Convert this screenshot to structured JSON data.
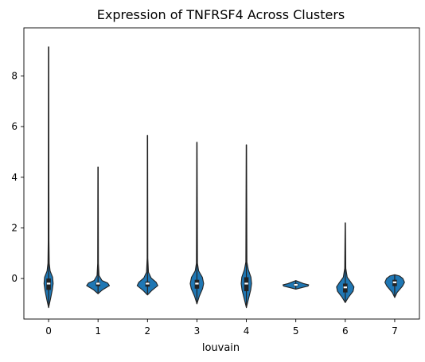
{
  "chart_data": {
    "type": "violin",
    "title": "Expression of TNFRSF4 Across Clusters",
    "xlabel": "louvain",
    "ylabel": "",
    "categories": [
      "0",
      "1",
      "2",
      "3",
      "4",
      "5",
      "6",
      "7"
    ],
    "y_ticks": [
      0,
      2,
      4,
      6,
      8
    ],
    "ylim": [
      -1.6,
      9.9
    ],
    "violin_color": "#1f77b4",
    "line_color": "#222222",
    "median_color": "#ffffff",
    "grid": false,
    "legend": "none",
    "series": [
      {
        "category": "0",
        "min": -1.15,
        "q1": -0.45,
        "median": -0.2,
        "q3": 0.0,
        "max": 9.15,
        "width": 0.22,
        "profile": [
          [
            -1.15,
            0.0
          ],
          [
            -0.8,
            0.18
          ],
          [
            -0.45,
            0.34
          ],
          [
            -0.2,
            0.42
          ],
          [
            0.05,
            0.37
          ],
          [
            0.3,
            0.14
          ],
          [
            0.6,
            0.06
          ],
          [
            1.5,
            0.035
          ],
          [
            9.15,
            0.015
          ]
        ]
      },
      {
        "category": "1",
        "min": -0.6,
        "q1": -0.3,
        "median": -0.2,
        "q3": -0.15,
        "max": 4.4,
        "width": 0.25,
        "profile": [
          [
            -0.6,
            0.0
          ],
          [
            -0.45,
            0.35
          ],
          [
            -0.28,
            0.92
          ],
          [
            -0.18,
            0.78
          ],
          [
            -0.08,
            0.32
          ],
          [
            0.12,
            0.08
          ],
          [
            0.6,
            0.03
          ],
          [
            4.4,
            0.015
          ]
        ]
      },
      {
        "category": "2",
        "min": -0.65,
        "q1": -0.32,
        "median": -0.2,
        "q3": -0.12,
        "max": 5.65,
        "width": 0.22,
        "profile": [
          [
            -0.65,
            0.0
          ],
          [
            -0.48,
            0.38
          ],
          [
            -0.28,
            0.95
          ],
          [
            -0.15,
            0.8
          ],
          [
            0.02,
            0.34
          ],
          [
            0.25,
            0.09
          ],
          [
            0.8,
            0.03
          ],
          [
            5.65,
            0.015
          ]
        ]
      },
      {
        "category": "3",
        "min": -1.0,
        "q1": -0.4,
        "median": -0.2,
        "q3": -0.05,
        "max": 5.38,
        "width": 0.22,
        "profile": [
          [
            -1.0,
            0.0
          ],
          [
            -0.7,
            0.22
          ],
          [
            -0.4,
            0.52
          ],
          [
            -0.2,
            0.62
          ],
          [
            0.05,
            0.5
          ],
          [
            0.3,
            0.16
          ],
          [
            0.6,
            0.05
          ],
          [
            5.38,
            0.015
          ]
        ]
      },
      {
        "category": "4",
        "min": -1.15,
        "q1": -0.5,
        "median": -0.2,
        "q3": 0.05,
        "max": 5.28,
        "width": 0.22,
        "profile": [
          [
            -1.15,
            0.0
          ],
          [
            -0.8,
            0.2
          ],
          [
            -0.45,
            0.4
          ],
          [
            -0.2,
            0.48
          ],
          [
            0.05,
            0.42
          ],
          [
            0.35,
            0.18
          ],
          [
            0.65,
            0.05
          ],
          [
            5.28,
            0.015
          ]
        ]
      },
      {
        "category": "5",
        "min": -0.42,
        "q1": -0.3,
        "median": -0.25,
        "q3": -0.2,
        "max": -0.08,
        "width": 0.26,
        "profile": [
          [
            -0.42,
            0.0
          ],
          [
            -0.36,
            0.45
          ],
          [
            -0.3,
            0.95
          ],
          [
            -0.25,
            1.0
          ],
          [
            -0.2,
            0.6
          ],
          [
            -0.08,
            0.0
          ]
        ]
      },
      {
        "category": "6",
        "min": -0.95,
        "q1": -0.55,
        "median": -0.35,
        "q3": -0.2,
        "max": 2.2,
        "width": 0.22,
        "profile": [
          [
            -0.95,
            0.0
          ],
          [
            -0.75,
            0.28
          ],
          [
            -0.5,
            0.72
          ],
          [
            -0.33,
            0.8
          ],
          [
            -0.15,
            0.52
          ],
          [
            0.05,
            0.18
          ],
          [
            0.4,
            0.05
          ],
          [
            2.2,
            0.015
          ]
        ]
      },
      {
        "category": "7",
        "min": -0.75,
        "q1": -0.3,
        "median": -0.15,
        "q3": -0.05,
        "max": 0.15,
        "width": 0.22,
        "profile": [
          [
            -0.75,
            0.0
          ],
          [
            -0.55,
            0.22
          ],
          [
            -0.3,
            0.72
          ],
          [
            -0.15,
            0.9
          ],
          [
            0.0,
            0.75
          ],
          [
            0.1,
            0.45
          ],
          [
            0.15,
            0.0
          ]
        ]
      }
    ]
  }
}
